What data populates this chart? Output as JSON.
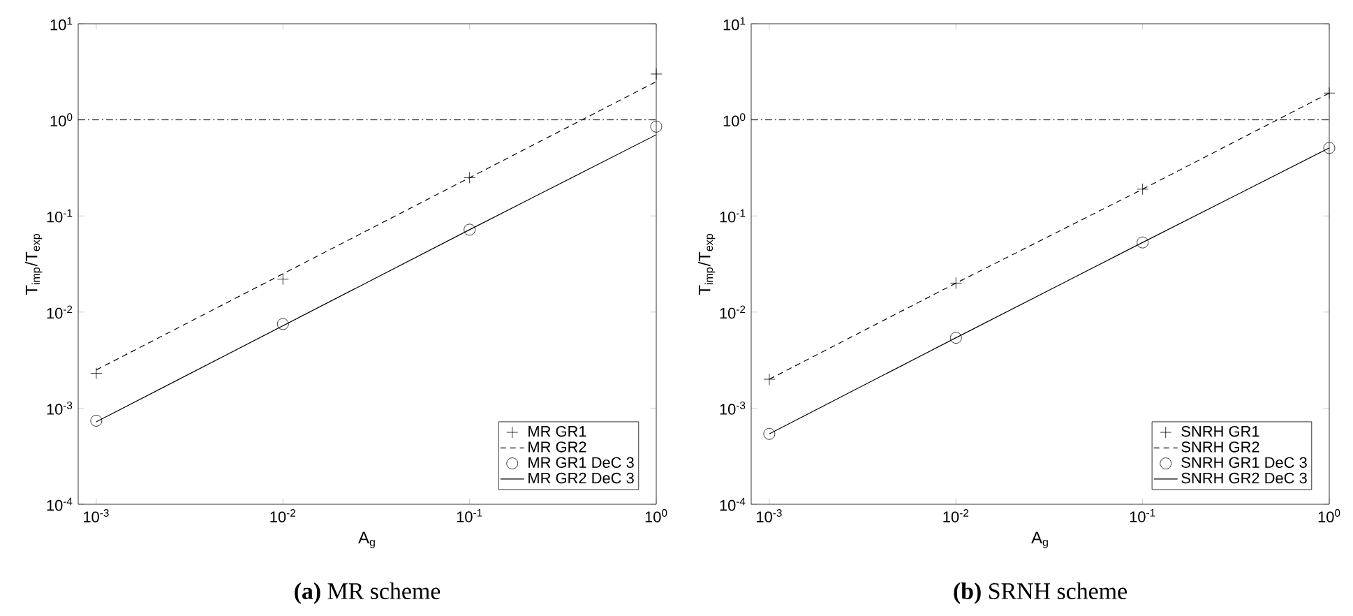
{
  "chart_data": [
    {
      "type": "line",
      "title": "**(a)** MR scheme",
      "xlabel": "A$_{g}$",
      "ylabel": "T$_{imp}$/T$_{exp}$",
      "log": "xy",
      "legend": "bottom right",
      "xlim": [
        0.0008,
        1
      ],
      "ylim": [
        0.0001,
        10
      ],
      "xticks": [
        {
          "value": 0.001,
          "label": "10$^{-3}$"
        },
        {
          "value": 0.01,
          "label": "10$^{-2}$"
        },
        {
          "value": 0.1,
          "label": "10$^{-1}$"
        },
        {
          "value": 1,
          "label": "10$^{0}$"
        }
      ],
      "yticks": [
        {
          "value": 0.0001,
          "label": "10$^{-4}$"
        },
        {
          "value": 0.001,
          "label": "10$^{-3}$"
        },
        {
          "value": 0.01,
          "label": "10$^{-2}$"
        },
        {
          "value": 0.1,
          "label": "10$^{-1}$"
        },
        {
          "value": 1,
          "label": "10$^{0}$"
        },
        {
          "value": 10,
          "label": "10$^{1}$"
        }
      ],
      "x": [
        0.001,
        0.01,
        0.1,
        1
      ],
      "series": [
        {
          "name": "MR GR1",
          "type": "scatter",
          "marker": "cross",
          "color": "#000000",
          "values": [
            0.0023,
            0.022,
            0.25,
            3.0
          ]
        },
        {
          "name": "MR GR2",
          "line_style": "dashed",
          "color": "#000000",
          "values": [
            0.0025,
            0.025,
            0.25,
            2.5
          ]
        },
        {
          "name": "MR GR1 DeC 3",
          "type": "scatter",
          "marker": "circle",
          "color": "#000000",
          "values": [
            0.00074,
            0.0075,
            0.072,
            0.85
          ]
        },
        {
          "name": "MR GR2 DeC 3",
          "line_style": "solid",
          "color": "#000000",
          "values": [
            0.00072,
            0.0072,
            0.072,
            0.7
          ]
        }
      ],
      "ref_lines": [
        {
          "axis": "y",
          "value": 1,
          "line_style": "dashdot",
          "color": "#000000"
        }
      ]
    },
    {
      "type": "line",
      "title": "**(b)** SRNH scheme",
      "xlabel": "A$_{g}$",
      "ylabel": "T$_{imp}$/T$_{exp}$",
      "log": "xy",
      "legend": "bottom right",
      "xlim": [
        0.0008,
        1
      ],
      "ylim": [
        0.0001,
        10
      ],
      "xticks": [
        {
          "value": 0.001,
          "label": "10$^{-3}$"
        },
        {
          "value": 0.01,
          "label": "10$^{-2}$"
        },
        {
          "value": 0.1,
          "label": "10$^{-1}$"
        },
        {
          "value": 1,
          "label": "10$^{0}$"
        }
      ],
      "yticks": [
        {
          "value": 0.0001,
          "label": "10$^{-4}$"
        },
        {
          "value": 0.001,
          "label": "10$^{-3}$"
        },
        {
          "value": 0.01,
          "label": "10$^{-2}$"
        },
        {
          "value": 0.1,
          "label": "10$^{-1}$"
        },
        {
          "value": 1,
          "label": "10$^{0}$"
        },
        {
          "value": 10,
          "label": "10$^{1}$"
        }
      ],
      "x": [
        0.001,
        0.01,
        0.1,
        1
      ],
      "series": [
        {
          "name": "SNRH GR1",
          "type": "scatter",
          "marker": "cross",
          "color": "#000000",
          "values": [
            0.002,
            0.02,
            0.19,
            1.9
          ]
        },
        {
          "name": "SNRH GR2",
          "line_style": "dashed",
          "color": "#000000",
          "values": [
            0.002,
            0.02,
            0.19,
            1.9
          ]
        },
        {
          "name": "SNRH GR1 DeC 3",
          "type": "scatter",
          "marker": "circle",
          "color": "#000000",
          "values": [
            0.00054,
            0.0054,
            0.053,
            0.51
          ]
        },
        {
          "name": "SNRH GR2 DeC 3",
          "line_style": "solid",
          "color": "#000000",
          "values": [
            0.00054,
            0.0054,
            0.053,
            0.51
          ]
        }
      ],
      "ref_lines": [
        {
          "axis": "y",
          "value": 1,
          "line_style": "dashdot",
          "color": "#000000"
        }
      ]
    }
  ]
}
